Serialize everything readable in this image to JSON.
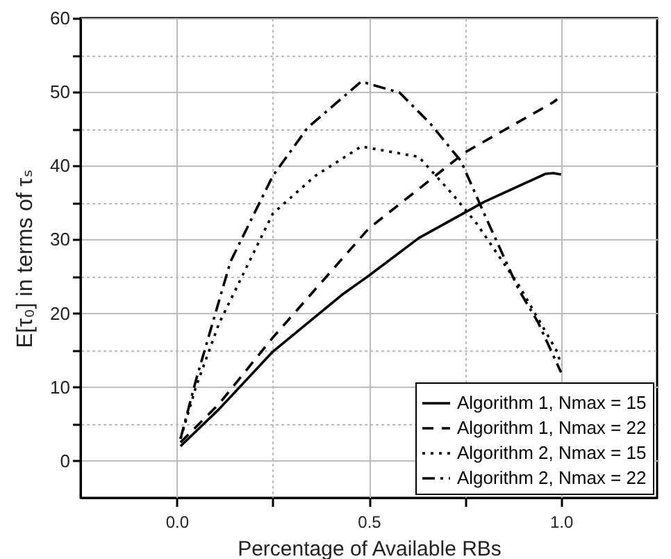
{
  "chart_data": {
    "type": "line",
    "xlabel": "Percentage of Available RBs",
    "ylabel": "E[τ₀] in terms of τₛ",
    "xlim": [
      -0.25,
      1.25
    ],
    "ylim": [
      -5,
      60
    ],
    "xticks": [
      {
        "value": 0,
        "label": "0.0"
      },
      {
        "value": 0.25,
        "label": null
      },
      {
        "value": 0.5,
        "label": "0.5"
      },
      {
        "value": 0.75,
        "label": null
      },
      {
        "value": 1,
        "label": "1.0"
      }
    ],
    "yticks": [
      0,
      {
        "value": 5,
        "label": null
      },
      10,
      {
        "value": 15,
        "label": null
      },
      20,
      {
        "value": 25,
        "label": null
      },
      30,
      {
        "value": 35,
        "label": null
      },
      40,
      {
        "value": 45,
        "label": null
      },
      50,
      {
        "value": 55,
        "label": null
      },
      60
    ],
    "grid": true,
    "legend": "bottom right",
    "series": [
      {
        "name": "Algorithm 1, Nmax = 15",
        "color": "#000000",
        "line_style": "solid",
        "x": [
          0.01,
          0.05,
          0.11,
          0.25,
          0.43,
          0.5,
          0.63,
          0.8,
          0.96,
          0.98,
          1.0
        ],
        "values": [
          2,
          4,
          7,
          14.8,
          22.5,
          25.1,
          30.2,
          35.1,
          38.9,
          39,
          38.8
        ]
      },
      {
        "name": "Algorithm 1, Nmax = 22",
        "color": "#000000",
        "line_style": "dashed",
        "x": [
          0.01,
          0.11,
          0.25,
          0.5,
          0.75,
          0.98,
          0.99
        ],
        "values": [
          2.5,
          7.7,
          16.7,
          31.5,
          41.8,
          48.6,
          49
        ]
      },
      {
        "name": "Algorithm 2, Nmax = 15",
        "color": "#000000",
        "line_style": "dotted",
        "x": [
          0.01,
          0.05,
          0.11,
          0.25,
          0.36,
          0.48,
          0.63,
          0.72,
          0.78,
          0.89,
          0.99,
          1.0
        ],
        "values": [
          3,
          10,
          18.6,
          33.5,
          38.6,
          42.6,
          41.2,
          36,
          32.2,
          23.8,
          14.8,
          13
        ]
      },
      {
        "name": "Algorithm 2, Nmax = 22",
        "color": "#000000",
        "line_style": "dashdot",
        "x": [
          0.01,
          0.05,
          0.14,
          0.25,
          0.34,
          0.48,
          0.58,
          0.66,
          0.74,
          0.8,
          0.89,
          0.94,
          1.0
        ],
        "values": [
          3,
          10.9,
          27,
          38.6,
          45.1,
          51.4,
          49.9,
          45.7,
          40.6,
          33.5,
          23.2,
          18.8,
          12
        ]
      }
    ]
  }
}
